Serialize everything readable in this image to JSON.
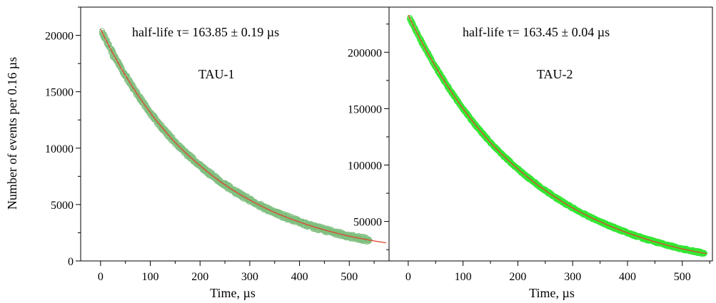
{
  "figure": {
    "ylabel": "Number of events per 0.16 µs"
  },
  "chart_data": [
    {
      "type": "scatter",
      "title": "",
      "xlabel": "Time, µs",
      "ylabel": "Number of events per 0.16 µs",
      "xlim": [
        -40,
        580
      ],
      "ylim": [
        0,
        22500
      ],
      "xticks": [
        0,
        100,
        200,
        300,
        400,
        500
      ],
      "xtick_labels": [
        "0",
        "100",
        "200",
        "300",
        "400",
        "500"
      ],
      "yticks": [
        0,
        5000,
        10000,
        15000,
        20000
      ],
      "ytick_labels": [
        "0",
        "5000",
        "10000",
        "15000",
        "20000"
      ],
      "annotation_halflife": "half-life τ= 163.85 ± 0.19 µs",
      "annotation_name": "TAU-1",
      "marker_color": "#7fbf7f",
      "fit_color": "#e0442c",
      "fit": {
        "model": "exponential",
        "x": [
          0,
          50,
          100,
          150,
          200,
          250,
          300,
          350,
          400,
          450,
          500,
          540,
          575
        ],
        "y": [
          20550,
          16450,
          13150,
          10500,
          8450,
          6750,
          5400,
          4300,
          3450,
          2750,
          2200,
          1850,
          1600
        ]
      },
      "series": [
        {
          "values_x": [
            5,
            25,
            50,
            75,
            100,
            125,
            150,
            175,
            200,
            225,
            250,
            275,
            300,
            325,
            350,
            375,
            400,
            425,
            450,
            475,
            500,
            525,
            540
          ],
          "values_y": [
            20000,
            18100,
            16450,
            14700,
            13150,
            11800,
            10500,
            9450,
            8450,
            7550,
            6750,
            6050,
            5400,
            4850,
            4300,
            3850,
            3450,
            3100,
            2750,
            2450,
            2200,
            1950,
            1850
          ]
        }
      ]
    },
    {
      "type": "scatter",
      "title": "",
      "xlabel": "Time, µs",
      "ylabel": "",
      "xlim": [
        -35,
        555
      ],
      "ylim": [
        15000,
        240000
      ],
      "xticks": [
        0,
        100,
        200,
        300,
        400,
        500
      ],
      "xtick_labels": [
        "0",
        "100",
        "200",
        "300",
        "400",
        "500"
      ],
      "yticks": [
        50000,
        100000,
        150000,
        200000
      ],
      "ytick_labels": [
        "50000",
        "100000",
        "150000",
        "200000"
      ],
      "annotation_halflife": "half-life τ= 163.45 ± 0.04 µs",
      "annotation_name": "TAU-2",
      "marker_color": "#33e633",
      "fit_color": "#e0442c",
      "fit": {
        "model": "exponential",
        "x": [
          0,
          50,
          100,
          150,
          200,
          250,
          300,
          350,
          400,
          450,
          500,
          540,
          545
        ],
        "y": [
          233000,
          187000,
          150000,
          120000,
          96500,
          77500,
          62000,
          49800,
          39900,
          32000,
          25700,
          21800,
          21500
        ]
      },
      "series": [
        {
          "values_x": [
            5,
            25,
            50,
            75,
            100,
            125,
            150,
            175,
            200,
            225,
            250,
            275,
            300,
            325,
            350,
            375,
            400,
            425,
            450,
            475,
            500,
            525,
            540
          ],
          "values_y": [
            228000,
            208000,
            187000,
            167000,
            150000,
            134000,
            120000,
            107500,
            96500,
            86500,
            77500,
            69500,
            62000,
            55500,
            49800,
            44600,
            39900,
            35800,
            32000,
            28700,
            25700,
            23000,
            21800
          ]
        }
      ]
    }
  ]
}
